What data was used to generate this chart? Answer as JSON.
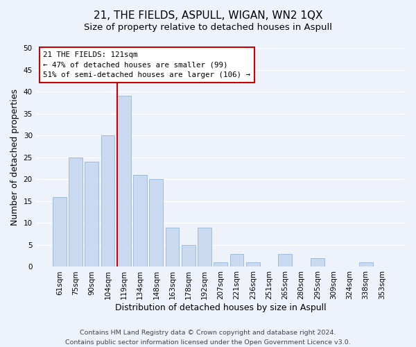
{
  "title": "21, THE FIELDS, ASPULL, WIGAN, WN2 1QX",
  "subtitle": "Size of property relative to detached houses in Aspull",
  "xlabel": "Distribution of detached houses by size in Aspull",
  "ylabel": "Number of detached properties",
  "bar_labels": [
    "61sqm",
    "75sqm",
    "90sqm",
    "104sqm",
    "119sqm",
    "134sqm",
    "148sqm",
    "163sqm",
    "178sqm",
    "192sqm",
    "207sqm",
    "221sqm",
    "236sqm",
    "251sqm",
    "265sqm",
    "280sqm",
    "295sqm",
    "309sqm",
    "324sqm",
    "338sqm",
    "353sqm"
  ],
  "bar_values": [
    16,
    25,
    24,
    30,
    39,
    21,
    20,
    9,
    5,
    9,
    1,
    3,
    1,
    0,
    3,
    0,
    2,
    0,
    0,
    1,
    0
  ],
  "bar_color": "#c9d9f0",
  "bar_edge_color": "#a0bcd8",
  "vline_index": 4,
  "vline_color": "#cc0000",
  "ylim": [
    0,
    50
  ],
  "yticks": [
    0,
    5,
    10,
    15,
    20,
    25,
    30,
    35,
    40,
    45,
    50
  ],
  "annotation_title": "21 THE FIELDS: 121sqm",
  "annotation_line1": "← 47% of detached houses are smaller (99)",
  "annotation_line2": "51% of semi-detached houses are larger (106) →",
  "annotation_box_color": "#ffffff",
  "annotation_box_edge": "#cc0000",
  "footer_line1": "Contains HM Land Registry data © Crown copyright and database right 2024.",
  "footer_line2": "Contains public sector information licensed under the Open Government Licence v3.0.",
  "background_color": "#eef2fb",
  "grid_color": "#ffffff",
  "title_fontsize": 11,
  "subtitle_fontsize": 9.5,
  "axis_label_fontsize": 9,
  "tick_fontsize": 7.5,
  "annotation_fontsize": 7.8,
  "footer_fontsize": 6.8
}
